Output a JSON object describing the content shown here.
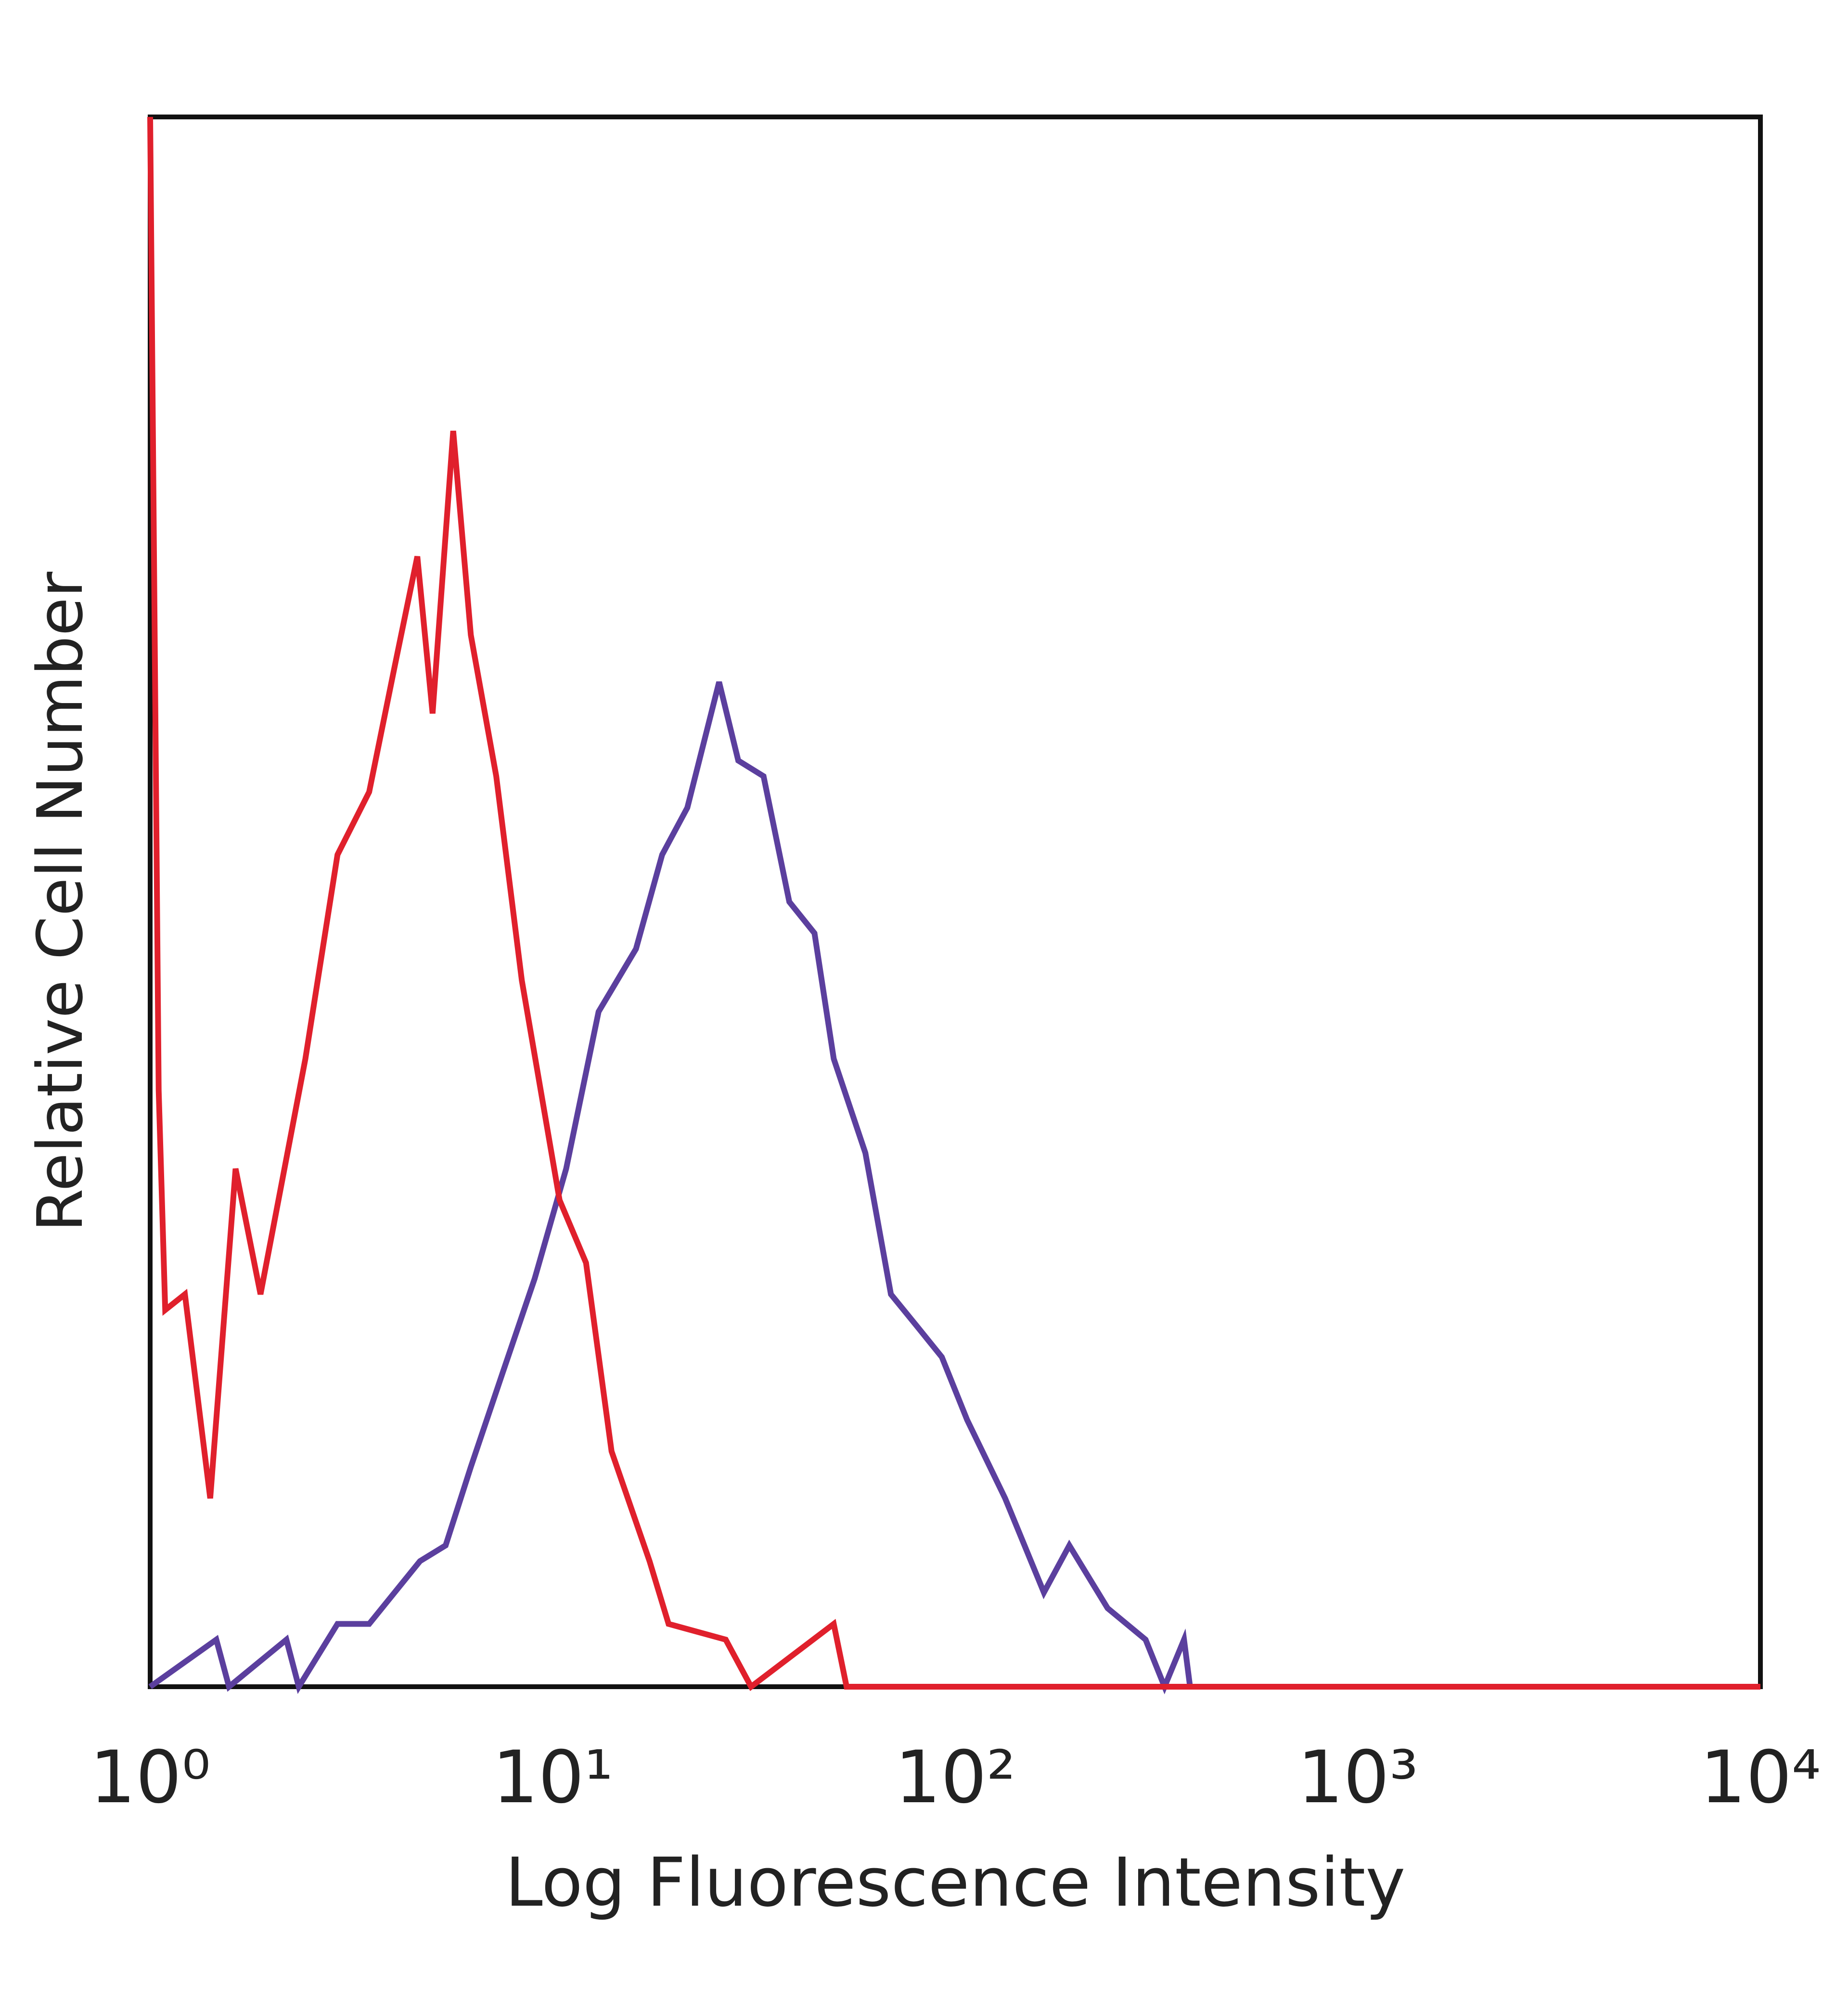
{
  "chart_data": {
    "type": "line",
    "xlabel": "Log Fluorescence Intensity",
    "ylabel": "Relative Cell Number",
    "xscale": "log",
    "xlim": [
      1,
      10000
    ],
    "ylim": [
      0,
      100
    ],
    "xticks": [
      {
        "value": 1,
        "label": "10⁰"
      },
      {
        "value": 10,
        "label": "10¹"
      },
      {
        "value": 100,
        "label": "10²"
      },
      {
        "value": 1000,
        "label": "10³"
      },
      {
        "value": 10000,
        "label": "10⁴"
      }
    ],
    "grid": false,
    "series": [
      {
        "color": "#5b3f9e",
        "x": [
          1,
          1.46,
          1.57,
          2.18,
          2.34,
          2.92,
          3.5,
          4.68,
          5.42,
          6.26,
          7.51,
          9.02,
          10.8,
          13.0,
          16.1,
          18.7,
          21.6,
          25.9,
          28.9,
          33.4,
          38.7,
          44.7,
          49.9,
          59.8,
          69.2,
          80.1,
          92.6,
          107,
          133,
          166,
          192,
          239,
          297,
          331,
          370,
          383
        ],
        "values": [
          0,
          3,
          0,
          3,
          0,
          4,
          4,
          8,
          9,
          14,
          20,
          26,
          33,
          43,
          47,
          53,
          56,
          64,
          59,
          58,
          50,
          48,
          40,
          34,
          25,
          23,
          21,
          17,
          12,
          6,
          9,
          5,
          3,
          0,
          3,
          0
        ]
      },
      {
        "color": "#e0202c",
        "x": [
          1,
          1.05,
          1.09,
          1.22,
          1.41,
          1.63,
          1.88,
          2.43,
          2.92,
          3.5,
          4.05,
          4.61,
          5.03,
          5.66,
          6.26,
          7.24,
          8.38,
          10.4,
          12.1,
          14.0,
          17.4,
          19.4,
          26.9,
          31.1,
          49.9,
          53.7,
          10000
        ],
        "values": [
          100,
          38,
          24,
          25,
          12,
          33,
          25,
          40,
          53,
          57,
          65,
          72,
          62,
          80,
          67,
          58,
          45,
          31,
          27,
          15,
          8,
          4,
          3,
          0,
          4,
          0,
          0
        ]
      }
    ]
  }
}
